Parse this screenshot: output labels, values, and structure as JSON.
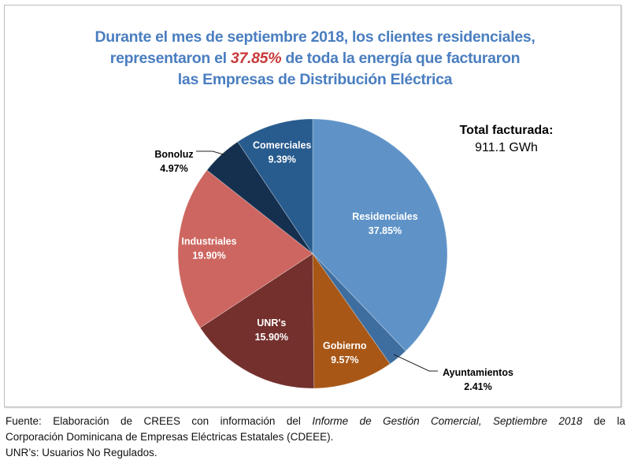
{
  "title": {
    "line1": "Durante el mes de septiembre 2018, los clientes residenciales,",
    "line2_pre": "representaron el ",
    "line2_highlight": "37.85%",
    "line2_post": " de toda la energía que facturaron",
    "line3": "las Empresas de Distribución Eléctrica"
  },
  "total": {
    "label": "Total facturada:",
    "value": "911.1 GWh"
  },
  "colors": {
    "title": "#4a7ec0",
    "highlight": "#c8393a"
  },
  "chart_data": {
    "type": "pie",
    "title": "Durante el mes de septiembre 2018, los clientes residenciales, representaron el 37.85% de toda la energía que facturaron las Empresas de Distribución Eléctrica",
    "start": "top",
    "direction": "clockwise",
    "slices": [
      {
        "name": "Residenciales",
        "value": 37.85,
        "label": "37.85%",
        "color": "#5f93c8",
        "label_position": "inside"
      },
      {
        "name": "Ayuntamientos",
        "value": 2.41,
        "label": "2.41%",
        "color": "#3e6e9f",
        "label_position": "outside"
      },
      {
        "name": "Gobierno",
        "value": 9.57,
        "label": "9.57%",
        "color": "#a85716",
        "label_position": "inside"
      },
      {
        "name": "UNR's",
        "value": 15.9,
        "label": "15.90%",
        "color": "#73302d",
        "label_position": "inside"
      },
      {
        "name": "Industriales",
        "value": 19.9,
        "label": "19.90%",
        "color": "#cd6660",
        "label_position": "inside"
      },
      {
        "name": "Bonoluz",
        "value": 4.97,
        "label": "4.97%",
        "color": "#15304f",
        "label_position": "outside"
      },
      {
        "name": "Comerciales",
        "value": 9.39,
        "label": "9.39%",
        "color": "#285b8e",
        "label_position": "inside"
      }
    ]
  },
  "footer": {
    "source_prefix": "Fuente: Elaboración de CREES con información del ",
    "source_italic": "Informe de Gestión Comercial, Septiembre 2018",
    "source_suffix": " de la",
    "source_line2": "Corporación Dominicana de Empresas Eléctricas Estatales (CDEEE).",
    "note": "UNR’s: Usuarios No Regulados."
  }
}
